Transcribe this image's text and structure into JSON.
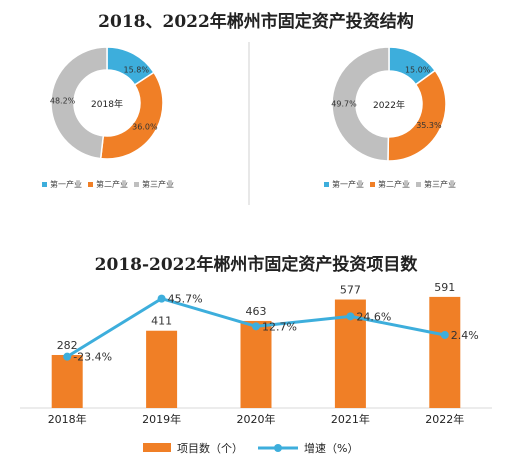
{
  "chart_data": [
    {
      "type": "pie",
      "title": "2018、2022年郴州市固定资产投资结构",
      "center_label": "2018年",
      "categories": [
        "第一产业",
        "第二产业",
        "第三产业"
      ],
      "values": [
        15.8,
        36.0,
        48.2
      ],
      "value_labels": [
        "15.8%",
        "36.0%",
        "48.2%"
      ],
      "legend_position": "bottom"
    },
    {
      "type": "pie",
      "center_label": "2022年",
      "categories": [
        "第一产业",
        "第二产业",
        "第三产业"
      ],
      "values": [
        15.0,
        35.3,
        49.7
      ],
      "value_labels": [
        "15.0%",
        "35.3%",
        "49.7%"
      ],
      "legend_position": "bottom"
    },
    {
      "type": "bar",
      "title": "2018-2022年郴州市固定资产投资项目数",
      "categories": [
        "2018年",
        "2019年",
        "2020年",
        "2021年",
        "2022年"
      ],
      "series": [
        {
          "name": "项目数（个）",
          "type": "bar",
          "values": [
            282,
            411,
            463,
            577,
            591
          ],
          "value_labels": [
            "282",
            "411",
            "463",
            "577",
            "591"
          ]
        },
        {
          "name": "增速（%）",
          "type": "line",
          "values": [
            -23.4,
            45.7,
            12.7,
            24.6,
            2.4
          ],
          "value_labels": [
            "-23.4%",
            "45.7%",
            "12.7%",
            "24.6%",
            "2.4%"
          ]
        }
      ],
      "legend_position": "bottom"
    }
  ],
  "colors": {
    "primary": "#3DAEDC",
    "secondary": "#F07F26",
    "tertiary": "#BFBFBF",
    "text": "#222222",
    "axis": "#D9D9D9",
    "divider": "#D0D0D0"
  }
}
